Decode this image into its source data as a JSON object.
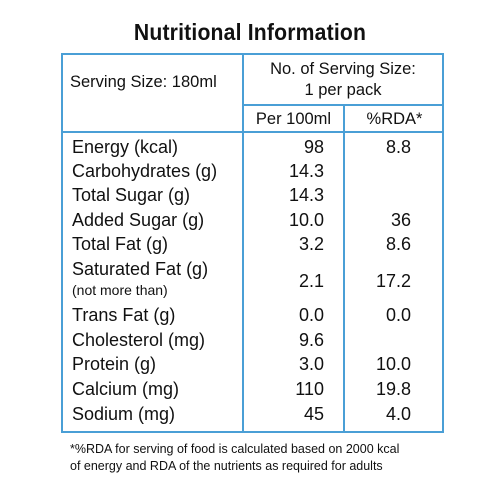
{
  "title": "Nutritional Information",
  "header": {
    "serving_size": "Serving Size: 180ml",
    "servings_line1": "No. of Serving Size:",
    "servings_line2": "1 per pack",
    "col_per": "Per 100ml",
    "col_rda": "%RDA*"
  },
  "rows": [
    {
      "label": "Energy (kcal)",
      "per": "98",
      "rda": "8.8"
    },
    {
      "label": "Carbohydrates (g)",
      "per": "14.3",
      "rda": ""
    },
    {
      "label": "Total Sugar (g)",
      "per": "14.3",
      "rda": ""
    },
    {
      "label": "Added Sugar (g)",
      "per": "10.0",
      "rda": "36"
    },
    {
      "label": "Total Fat (g)",
      "per": "3.2",
      "rda": "8.6"
    },
    {
      "label": "Saturated Fat (g)",
      "sublabel": "(not more than)",
      "per": "2.1",
      "rda": "17.2"
    },
    {
      "label": "Trans Fat (g)",
      "per": "0.0",
      "rda": "0.0"
    },
    {
      "label": "Cholesterol (mg)",
      "per": "9.6",
      "rda": ""
    },
    {
      "label": "Protein (g)",
      "per": "3.0",
      "rda": "10.0"
    },
    {
      "label": "Calcium (mg)",
      "per": "110",
      "rda": "19.8"
    },
    {
      "label": "Sodium (mg)",
      "per": "45",
      "rda": "4.0"
    }
  ],
  "footnote_line1": "*%RDA  for serving of food is calculated based on 2000 kcal",
  "footnote_line2": "of energy and RDA of the nutrients as required for adults",
  "colors": {
    "border": "#4a9fd6",
    "text": "#111111"
  }
}
